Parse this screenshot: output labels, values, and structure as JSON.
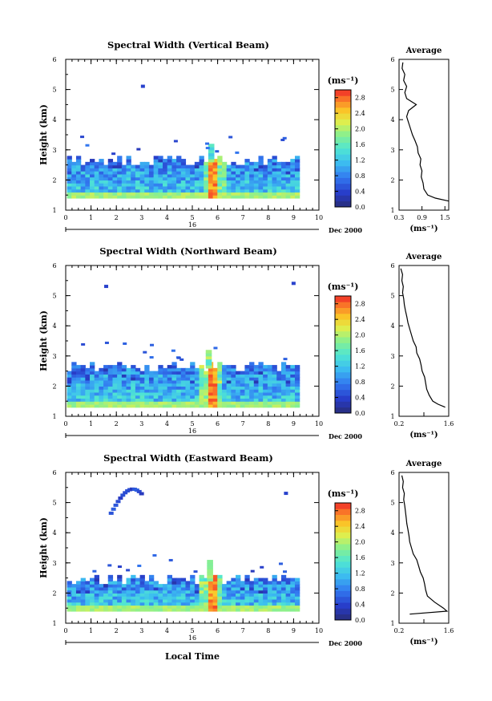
{
  "figure": {
    "x_axis_title": "Local Time",
    "date_label": "Dec 2000",
    "day_label": "16",
    "height_axis_title": "Height (km)",
    "avg_title": "Average",
    "unit_label": "(ms⁻¹)"
  },
  "chart_data": [
    {
      "type": "heatmap",
      "title": "Spectral Width (Vertical Beam)",
      "xlabel": "",
      "ylabel": "Height (km)",
      "xlim": [
        0,
        10
      ],
      "ylim": [
        1,
        6
      ],
      "x_ticks": [
        0,
        1,
        2,
        3,
        4,
        5,
        6,
        7,
        8,
        9,
        10
      ],
      "y_ticks": [
        1,
        2,
        3,
        4,
        5,
        6
      ],
      "colorbar": {
        "label": "(ms⁻¹)",
        "range": [
          0,
          3.0
        ],
        "ticks": [
          0.0,
          0.4,
          0.8,
          1.2,
          1.6,
          2.0,
          2.4,
          2.8
        ]
      },
      "data_extent": {
        "x": [
          0.05,
          9.1
        ],
        "y_top": 2.6,
        "y_bottom": 1.4
      },
      "features": [
        {
          "kind": "vertical-band",
          "x": 5.75,
          "y": [
            1.4,
            3.2
          ],
          "value": 2.8
        },
        {
          "kind": "isolated-echo",
          "x": 3.05,
          "y": 5.1,
          "value": 0.4
        },
        {
          "kind": "low-width-layer",
          "y": 1.45,
          "value": 1.8
        }
      ],
      "average_profile": {
        "title": "Average",
        "xlabel": "(ms⁻¹)",
        "xlim": [
          0.3,
          1.6
        ],
        "x_ticks": [
          0.3,
          0.9,
          1.5
        ],
        "x_tick_labels": [
          "0.3",
          "0.9",
          "1.5"
        ],
        "height": [
          1.3,
          1.4,
          1.5,
          1.7,
          1.9,
          2.1,
          2.3,
          2.5,
          2.7,
          2.9,
          3.1,
          3.3,
          3.5,
          3.7,
          3.9,
          4.1,
          4.3,
          4.5,
          4.7,
          4.9,
          5.1,
          5.3,
          5.5,
          5.7,
          5.9
        ],
        "width": [
          1.6,
          1.25,
          1.05,
          0.95,
          0.93,
          0.88,
          0.9,
          0.85,
          0.87,
          0.8,
          0.78,
          0.72,
          0.65,
          0.6,
          0.55,
          0.5,
          0.55,
          0.75,
          0.5,
          0.45,
          0.5,
          0.42,
          0.45,
          0.38,
          0.4
        ]
      }
    },
    {
      "type": "heatmap",
      "title": "Spectral Width (Northward Beam)",
      "xlabel": "",
      "ylabel": "Height (km)",
      "xlim": [
        0,
        10
      ],
      "ylim": [
        1,
        6
      ],
      "x_ticks": [
        0,
        1,
        2,
        3,
        4,
        5,
        6,
        7,
        8,
        9,
        10
      ],
      "y_ticks": [
        1,
        2,
        3,
        4,
        5,
        6
      ],
      "colorbar": {
        "label": "(ms⁻¹)",
        "range": [
          0,
          3.0
        ],
        "ticks": [
          0.0,
          0.4,
          0.8,
          1.2,
          1.6,
          2.0,
          2.4,
          2.8
        ]
      },
      "data_extent": {
        "x": [
          0.05,
          9.1
        ],
        "y_top": 2.6,
        "y_bottom": 1.3
      },
      "features": [
        {
          "kind": "vertical-band",
          "x": 5.65,
          "y": [
            1.4,
            3.2
          ],
          "value": 2.8
        },
        {
          "kind": "isolated-echo",
          "x": 1.6,
          "y": 5.3,
          "value": 0.4
        },
        {
          "kind": "isolated-echo",
          "x": 9.0,
          "y": 5.4,
          "value": 0.4
        },
        {
          "kind": "low-width-layer",
          "y": 1.5,
          "value": 1.8
        }
      ],
      "average_profile": {
        "title": "Average",
        "xlabel": "(ms⁻¹)",
        "xlim": [
          0.2,
          1.6
        ],
        "x_ticks": [
          0.2,
          0.9,
          1.6
        ],
        "x_tick_labels": [
          "0.2",
          "",
          "1.6"
        ],
        "height": [
          1.3,
          1.4,
          1.5,
          1.7,
          1.9,
          2.1,
          2.3,
          2.5,
          2.7,
          2.9,
          3.1,
          3.3,
          3.5,
          3.7,
          3.9,
          4.1,
          4.3,
          4.5,
          4.7,
          4.9,
          5.1,
          5.3,
          5.5,
          5.7,
          5.9
        ],
        "width": [
          1.5,
          1.3,
          1.15,
          1.05,
          0.98,
          0.95,
          0.92,
          0.85,
          0.82,
          0.78,
          0.7,
          0.68,
          0.6,
          0.55,
          0.5,
          0.45,
          0.42,
          0.38,
          0.35,
          0.33,
          0.3,
          0.32,
          0.28,
          0.3,
          0.25
        ]
      }
    },
    {
      "type": "heatmap",
      "title": "Spectral Width (Eastward Beam)",
      "xlabel": "Local Time",
      "ylabel": "Height (km)",
      "xlim": [
        0,
        10
      ],
      "ylim": [
        1,
        6
      ],
      "x_ticks": [
        0,
        1,
        2,
        3,
        4,
        5,
        6,
        7,
        8,
        9,
        10
      ],
      "y_ticks": [
        1,
        2,
        3,
        4,
        5,
        6
      ],
      "colorbar": {
        "label": "(ms⁻¹)",
        "range": [
          0,
          3.0
        ],
        "ticks": [
          0.0,
          0.4,
          0.8,
          1.2,
          1.6,
          2.0,
          2.4,
          2.8
        ]
      },
      "data_extent": {
        "x": [
          0.05,
          9.1
        ],
        "y_top": 2.4,
        "y_bottom": 1.4
      },
      "features": [
        {
          "kind": "vertical-band",
          "x": 5.7,
          "y": [
            1.5,
            3.1
          ],
          "value": 2.8
        },
        {
          "kind": "echo-arc",
          "x": [
            1.7,
            2.9
          ],
          "y": [
            4.7,
            5.5
          ],
          "value": 0.4
        },
        {
          "kind": "isolated-echo",
          "x": 8.7,
          "y": 5.3,
          "value": 0.4
        },
        {
          "kind": "low-width-layer",
          "y": 1.45,
          "value": 1.8
        }
      ],
      "average_profile": {
        "title": "Average",
        "xlabel": "(ms⁻¹)",
        "xlim": [
          0.2,
          1.6
        ],
        "x_ticks": [
          0.2,
          0.9,
          1.6
        ],
        "x_tick_labels": [
          "0.2",
          "",
          "1.6"
        ],
        "height": [
          1.3,
          1.4,
          1.5,
          1.7,
          1.9,
          2.1,
          2.3,
          2.5,
          2.7,
          2.9,
          3.1,
          3.3,
          3.5,
          3.7,
          3.9,
          4.1,
          4.3,
          4.5,
          4.7,
          4.9,
          5.1,
          5.3,
          5.5,
          5.7,
          5.9
        ],
        "width": [
          0.5,
          1.55,
          1.45,
          1.2,
          1.0,
          0.95,
          0.92,
          0.88,
          0.8,
          0.75,
          0.7,
          0.6,
          0.55,
          0.5,
          0.48,
          0.45,
          0.42,
          0.4,
          0.38,
          0.36,
          0.33,
          0.35,
          0.3,
          0.32,
          0.28
        ]
      }
    }
  ]
}
